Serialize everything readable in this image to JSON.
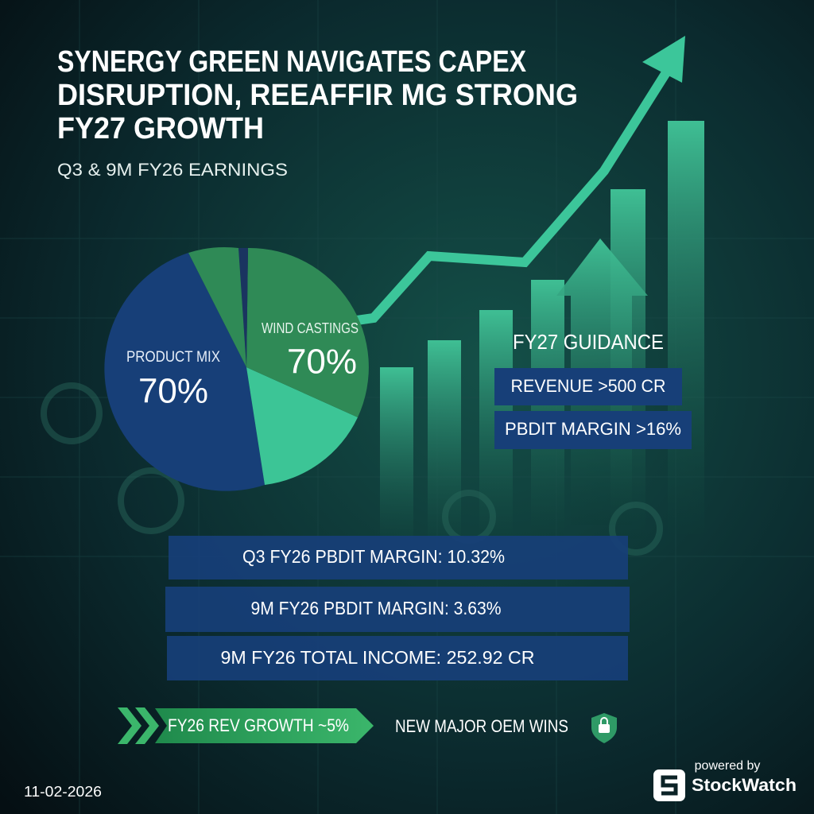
{
  "header": {
    "title_lines": [
      "SYNERGY GREEN NAVIGATES CAPEX",
      "DISRUPTION, REEAFFIR MG STRONG",
      "FY27 GROWTH"
    ],
    "subtitle": "Q3 & 9M FY26 EARNINGS"
  },
  "pie": {
    "left_label": "PRODUCT MIX",
    "left_value": "70%",
    "right_label": "WIND CASTINGS",
    "right_value": "70%"
  },
  "guidance": {
    "title": "FY27 GUIDANCE",
    "items": [
      "REVENUE >500 CR",
      "PBDIT MARGIN >16%"
    ]
  },
  "metrics": [
    "Q3 FY26 PBDIT MARGIN: 10.32%",
    "9M FY26 PBDIT MARGIN: 3.63%",
    "9M FY26  TOTAL INCOME: 252.92 CR"
  ],
  "footer": {
    "growth": "FY26 REV GROWTH ~5%",
    "wins": "NEW MAJOR OEM WINS",
    "date": "11-02-2026",
    "powered_by": "powered by",
    "brand": "StockWatch"
  }
}
